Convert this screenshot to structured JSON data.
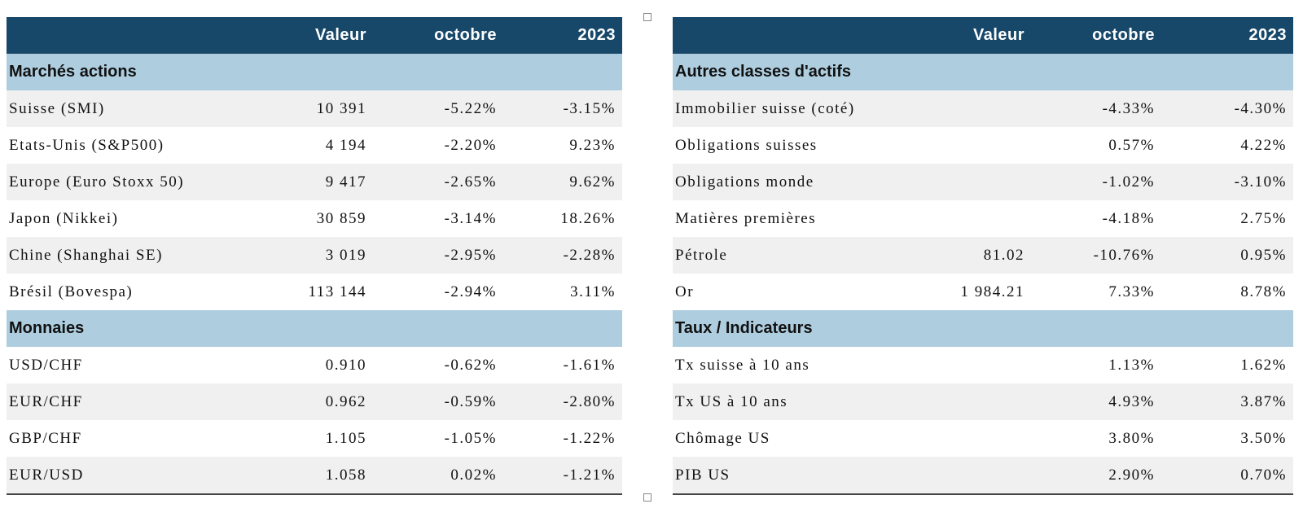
{
  "left": {
    "headers": [
      "",
      "Valeur",
      "octobre",
      "2023"
    ],
    "sections": [
      {
        "title": "Marchés actions",
        "rows": [
          {
            "name": "Suisse (SMI)",
            "value": "10 391",
            "month": "-5.22%",
            "ytd": "-3.15%"
          },
          {
            "name": "Etats-Unis (S&P500)",
            "value": "4 194",
            "month": "-2.20%",
            "ytd": "9.23%"
          },
          {
            "name": "Europe (Euro Stoxx 50)",
            "value": "9 417",
            "month": "-2.65%",
            "ytd": "9.62%"
          },
          {
            "name": "Japon (Nikkei)",
            "value": "30 859",
            "month": "-3.14%",
            "ytd": "18.26%"
          },
          {
            "name": "Chine (Shanghai SE)",
            "value": "3 019",
            "month": "-2.95%",
            "ytd": "-2.28%"
          },
          {
            "name": "Brésil (Bovespa)",
            "value": "113 144",
            "month": "-2.94%",
            "ytd": "3.11%"
          }
        ]
      },
      {
        "title": "Monnaies",
        "rows": [
          {
            "name": "USD/CHF",
            "value": "0.910",
            "month": "-0.62%",
            "ytd": "-1.61%"
          },
          {
            "name": "EUR/CHF",
            "value": "0.962",
            "month": "-0.59%",
            "ytd": "-2.80%"
          },
          {
            "name": "GBP/CHF",
            "value": "1.105",
            "month": "-1.05%",
            "ytd": "-1.22%"
          },
          {
            "name": "EUR/USD",
            "value": "1.058",
            "month": "0.02%",
            "ytd": "-1.21%"
          }
        ]
      }
    ]
  },
  "right": {
    "headers": [
      "",
      "Valeur",
      "octobre",
      "2023"
    ],
    "sections": [
      {
        "title": "Autres classes d'actifs",
        "rows": [
          {
            "name": "Immobilier suisse (coté)",
            "value": "",
            "month": "-4.33%",
            "ytd": "-4.30%"
          },
          {
            "name": "Obligations suisses",
            "value": "",
            "month": "0.57%",
            "ytd": "4.22%"
          },
          {
            "name": "Obligations monde",
            "value": "",
            "month": "-1.02%",
            "ytd": "-3.10%"
          },
          {
            "name": "Matières premières",
            "value": "",
            "month": "-4.18%",
            "ytd": "2.75%"
          },
          {
            "name": "Pétrole",
            "value": "81.02",
            "month": "-10.76%",
            "ytd": "0.95%"
          },
          {
            "name": "Or",
            "value": "1 984.21",
            "month": "7.33%",
            "ytd": "8.78%"
          }
        ]
      },
      {
        "title": "Taux / Indicateurs",
        "rows": [
          {
            "name": "Tx suisse à 10 ans",
            "value": "",
            "month": "1.13%",
            "ytd": "1.62%"
          },
          {
            "name": "Tx US à 10 ans",
            "value": "",
            "month": "4.93%",
            "ytd": "3.87%"
          },
          {
            "name": "Chômage US",
            "value": "",
            "month": "3.80%",
            "ytd": "3.50%"
          },
          {
            "name": "PIB US",
            "value": "",
            "month": "2.90%",
            "ytd": "0.70%"
          }
        ]
      }
    ]
  },
  "colors": {
    "header_bg": "#17486a",
    "section_bg": "#aecee0",
    "stripe": "#f0f0f0"
  }
}
